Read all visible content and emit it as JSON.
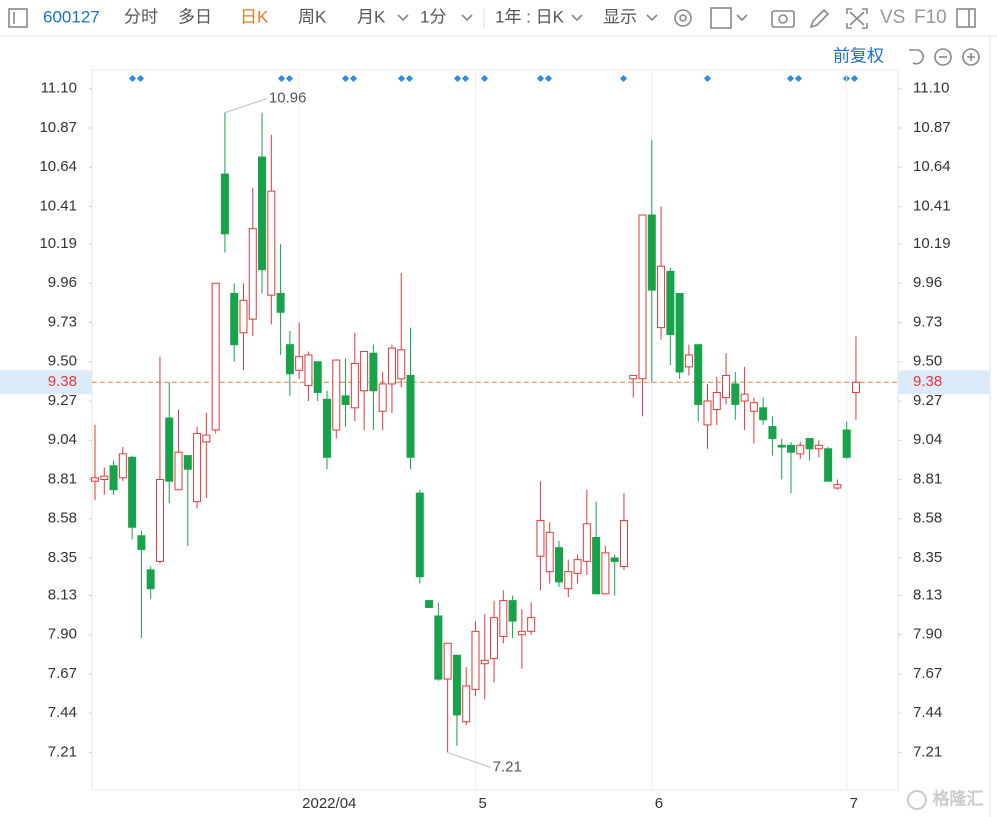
{
  "toolbar": {
    "code": "600127",
    "items": [
      "分时",
      "多日",
      "日K",
      "周K",
      "月K",
      "1分",
      "1年 : 日K",
      "显示"
    ],
    "vs": "VS",
    "f10": "F10",
    "adjust": "前复权"
  },
  "watermark": "格隆汇",
  "chart_data": {
    "type": "candlestick",
    "categories": [
      null,
      null,
      null,
      null,
      null,
      null,
      null,
      null,
      null,
      null,
      null,
      null,
      null,
      null,
      null,
      null,
      null,
      null,
      null,
      null,
      null,
      null,
      "2022/04",
      null,
      null,
      null,
      null,
      null,
      null,
      null,
      null,
      null,
      null,
      null,
      null,
      null,
      null,
      null,
      null,
      null,
      null,
      "5",
      null,
      null,
      null,
      null,
      null,
      null,
      null,
      null,
      null,
      null,
      null,
      null,
      null,
      null,
      null,
      null,
      null,
      null,
      "6",
      null,
      null,
      null,
      null,
      null,
      null,
      null,
      null,
      null,
      null,
      null,
      null,
      null,
      null,
      null,
      null,
      null,
      null,
      null,
      null,
      "7",
      null
    ],
    "open": [
      8.8,
      8.81,
      8.89,
      8.82,
      8.94,
      8.48,
      8.28,
      8.33,
      9.17,
      8.75,
      8.95,
      8.68,
      9.03,
      9.1,
      10.6,
      9.9,
      9.67,
      9.75,
      10.7,
      9.89,
      9.9,
      9.6,
      9.45,
      9.36,
      9.5,
      9.28,
      9.1,
      9.3,
      9.23,
      9.33,
      9.55,
      9.21,
      9.37,
      9.4,
      9.42,
      8.73,
      8.1,
      8.01,
      7.64,
      7.78,
      7.39,
      7.58,
      7.73,
      7.76,
      7.89,
      8.1,
      7.9,
      7.92,
      8.36,
      8.27,
      8.41,
      8.17,
      8.26,
      8.33,
      8.47,
      8.14,
      8.35,
      8.3,
      9.4,
      9.4,
      10.36,
      9.7,
      10.03,
      9.9,
      9.47,
      9.6,
      9.13,
      9.22,
      9.29,
      9.37,
      9.27,
      9.21,
      9.23,
      9.12,
      9.01,
      9.01,
      8.96,
      9.05,
      8.99,
      8.99,
      8.76,
      9.1,
      9.32
    ],
    "high": [
      9.13,
      8.88,
      8.92,
      9.0,
      8.95,
      8.51,
      8.3,
      9.53,
      9.38,
      9.22,
      8.95,
      9.12,
      9.2,
      9.96,
      10.96,
      9.96,
      9.96,
      10.52,
      10.96,
      10.83,
      10.19,
      9.68,
      9.73,
      9.56,
      9.5,
      9.33,
      9.51,
      9.52,
      9.67,
      9.56,
      9.6,
      9.44,
      9.6,
      10.02,
      9.7,
      8.75,
      8.1,
      8.09,
      7.85,
      7.78,
      7.71,
      7.98,
      8.02,
      8.1,
      8.16,
      8.13,
      8.05,
      8.09,
      8.8,
      8.56,
      8.45,
      8.34,
      8.37,
      8.75,
      8.68,
      8.42,
      8.37,
      8.73,
      9.42,
      10.36,
      10.8,
      10.41,
      10.05,
      9.9,
      9.6,
      9.6,
      9.37,
      9.41,
      9.55,
      9.44,
      9.47,
      9.29,
      9.29,
      9.18,
      9.05,
      9.03,
      9.03,
      9.05,
      9.04,
      9.0,
      8.81,
      9.15,
      9.65
    ],
    "low": [
      8.69,
      8.72,
      8.72,
      8.8,
      8.46,
      7.88,
      8.11,
      8.32,
      8.67,
      8.75,
      8.42,
      8.64,
      8.7,
      9.08,
      10.14,
      9.5,
      9.45,
      9.65,
      9.9,
      9.72,
      9.54,
      9.3,
      9.4,
      9.27,
      9.27,
      8.87,
      9.05,
      9.12,
      9.15,
      9.1,
      9.1,
      9.1,
      9.2,
      9.35,
      8.87,
      8.2,
      8.06,
      7.63,
      7.21,
      7.25,
      7.37,
      7.54,
      7.52,
      7.62,
      7.85,
      7.88,
      7.7,
      7.9,
      8.16,
      8.2,
      8.18,
      8.12,
      8.2,
      8.25,
      8.14,
      8.14,
      8.13,
      8.28,
      9.29,
      9.18,
      9.38,
      9.63,
      9.48,
      9.4,
      9.42,
      9.15,
      8.99,
      9.13,
      9.25,
      9.16,
      9.1,
      9.02,
      9.13,
      8.95,
      8.81,
      8.73,
      8.93,
      8.92,
      8.94,
      8.8,
      8.75,
      8.93,
      9.16
    ],
    "close": [
      8.82,
      8.83,
      8.75,
      8.96,
      8.53,
      8.4,
      8.17,
      8.81,
      8.8,
      8.97,
      8.87,
      9.08,
      9.07,
      9.96,
      10.25,
      9.6,
      9.86,
      10.28,
      10.04,
      10.5,
      9.79,
      9.43,
      9.53,
      9.54,
      9.32,
      8.94,
      9.51,
      9.25,
      9.49,
      9.56,
      9.33,
      9.37,
      9.58,
      9.57,
      8.94,
      8.24,
      8.06,
      7.64,
      7.85,
      7.43,
      7.6,
      7.92,
      7.75,
      8.0,
      8.1,
      7.98,
      7.92,
      8.0,
      8.57,
      8.5,
      8.21,
      8.27,
      8.34,
      8.55,
      8.14,
      8.38,
      8.33,
      8.57,
      9.42,
      10.36,
      9.92,
      10.06,
      9.66,
      9.44,
      9.54,
      9.25,
      9.27,
      9.32,
      9.42,
      9.25,
      9.31,
      9.26,
      9.16,
      9.05,
      9.0,
      8.97,
      9.01,
      8.99,
      9.01,
      8.8,
      8.78,
      8.94,
      9.38
    ],
    "up_color": "#e2393a",
    "down_color": "#16a34a",
    "ylim": [
      6.99,
      11.21
    ],
    "yticks": [
      {
        "value": 11.1,
        "label": "11.10"
      },
      10.87,
      10.64,
      10.41,
      10.19,
      9.96,
      9.73,
      {
        "value": 9.5,
        "label": "9.50"
      },
      9.27,
      9.04,
      8.81,
      8.58,
      8.35,
      8.13,
      {
        "value": 7.9,
        "label": "7.90"
      },
      7.67,
      7.44,
      7.21
    ],
    "current_price": 9.38,
    "current_color": "#e0803a",
    "high_label": 10.96,
    "low_label": 7.21,
    "grid": "x"
  }
}
